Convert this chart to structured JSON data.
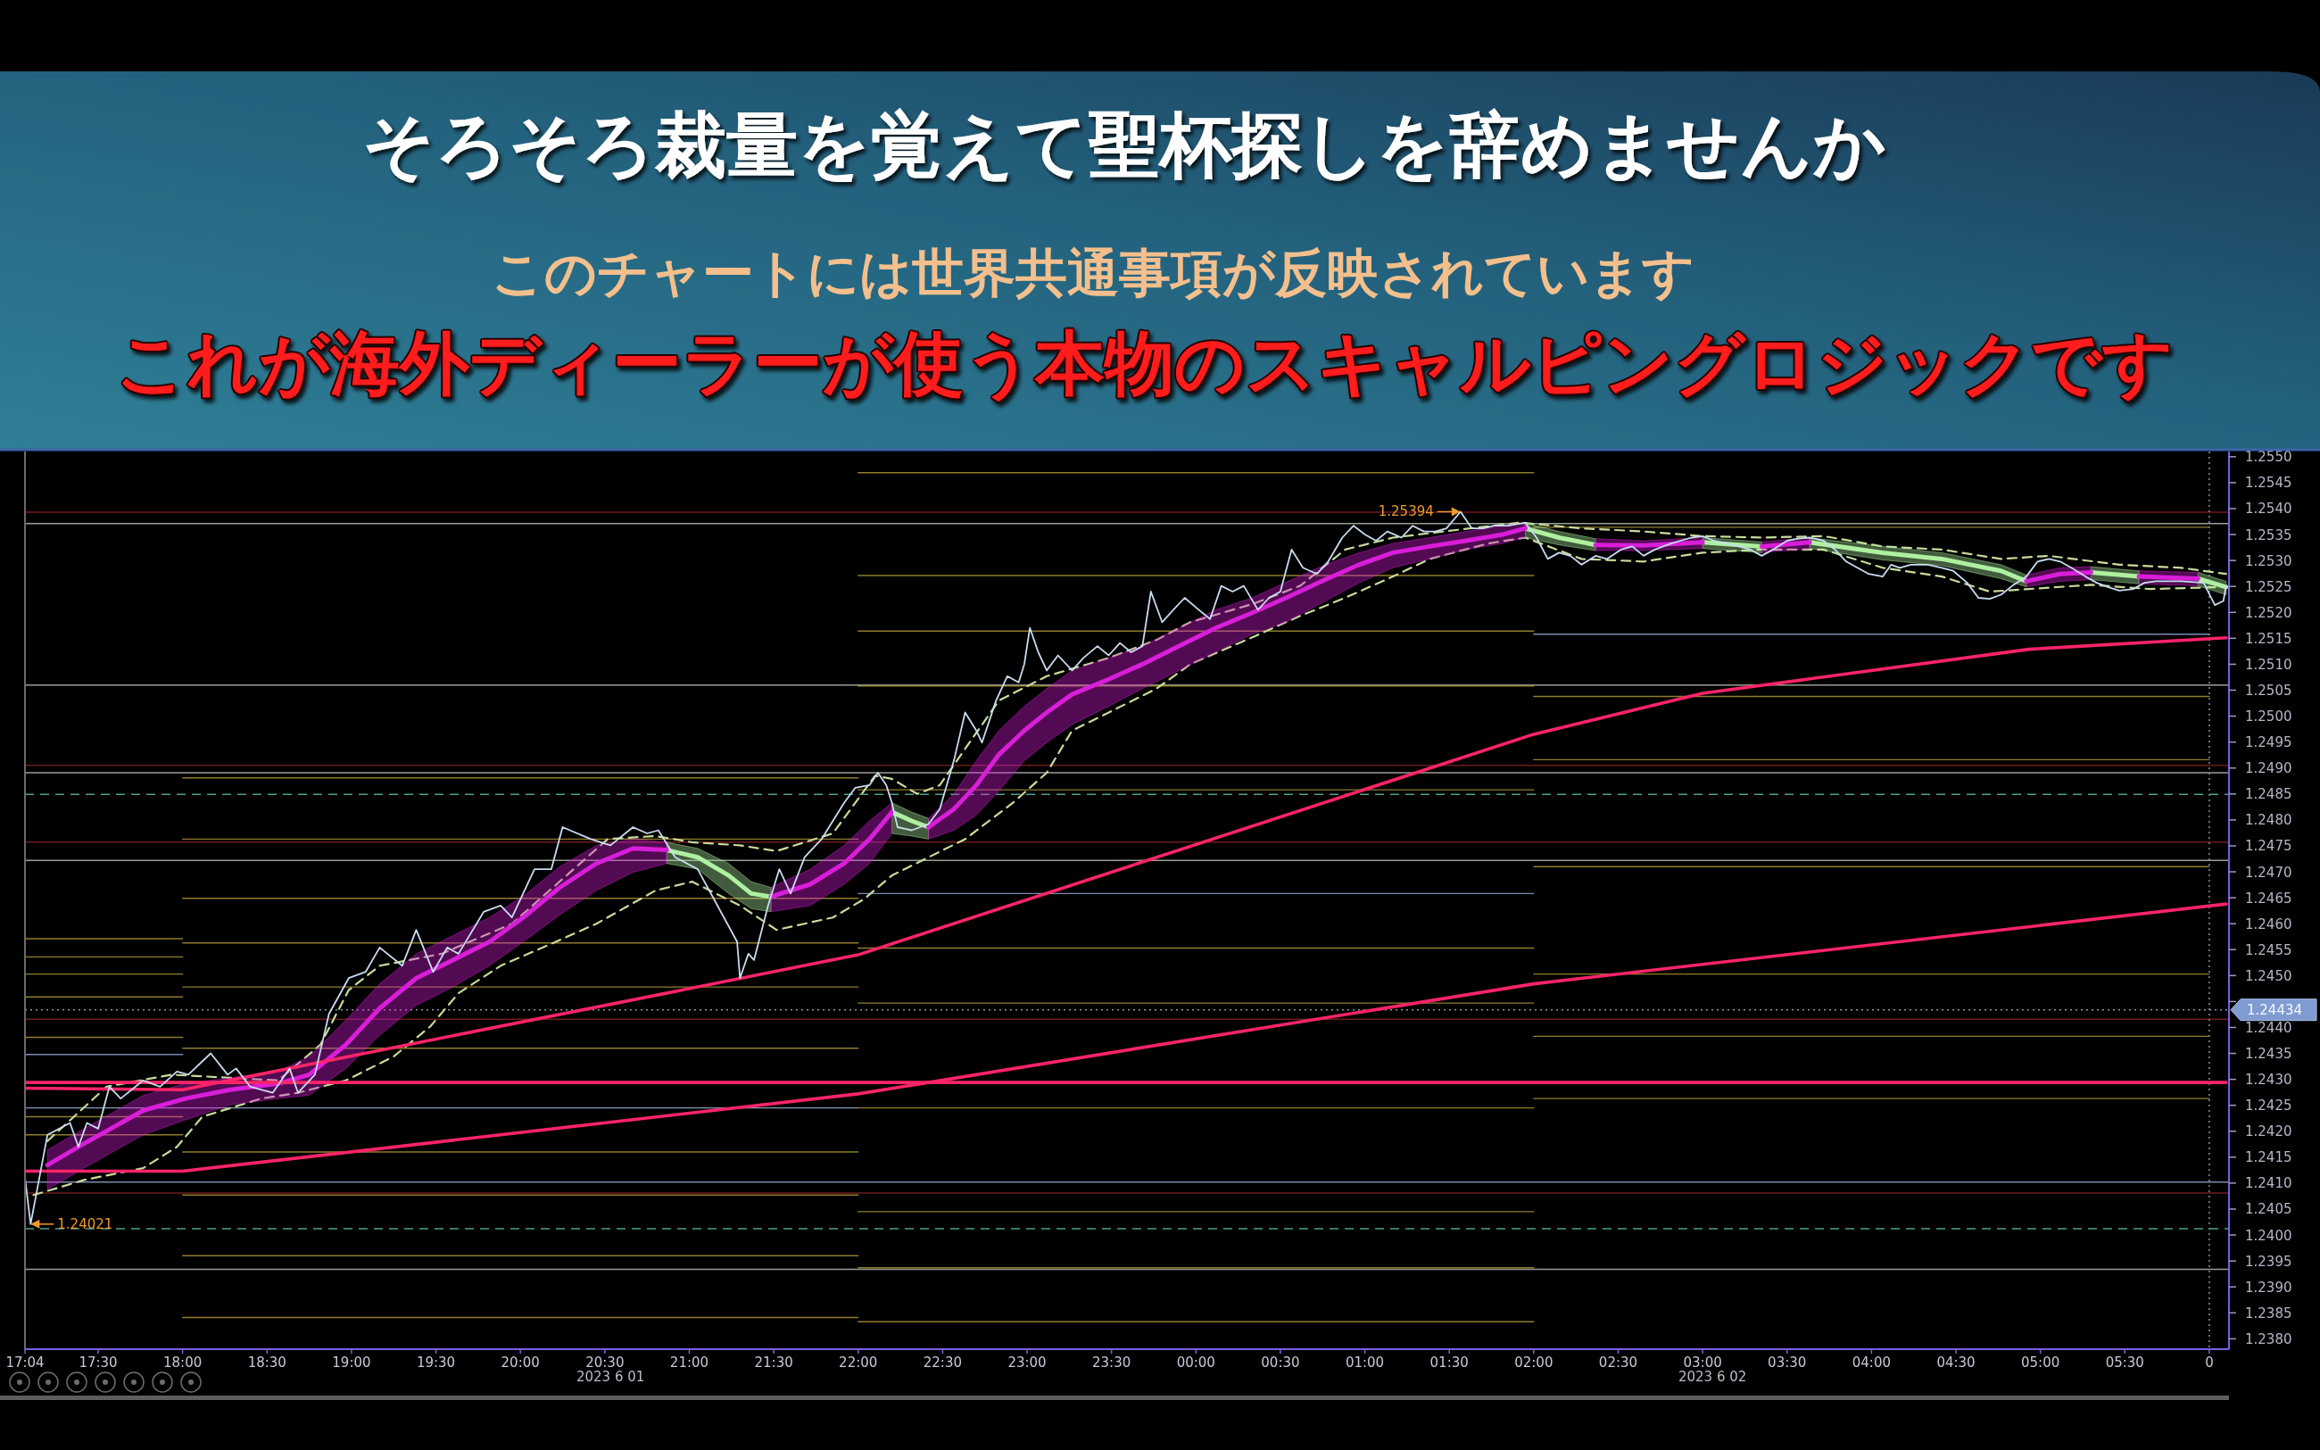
{
  "chart_data": {
    "type": "line",
    "title": "そろそろ裁量を覚えて聖杯探しを辞めませんか",
    "subtitle": "このチャートには世界共通事項が反映されています",
    "annotations": [
      "これが海外ディーラーが使う本物のスキャルピングロジックです",
      {
        "text": "1.25394",
        "x": "2023-06-02T01:34",
        "y": 1.25394
      },
      {
        "text": "1.24021",
        "x": "2023-06-01T17:06",
        "y": 1.24021
      },
      "2023 6 01",
      "2023 6 02"
    ],
    "xlim": [
      "2023-06-01T17:04",
      "2023-06-02T06:07"
    ],
    "ylim": [
      1.2378,
      1.2551
    ],
    "xticks": [
      {
        "value": "2023-06-01T17:04",
        "label": "17:04"
      },
      {
        "value": "2023-06-01T17:30",
        "label": "17:30"
      },
      {
        "value": "2023-06-01T18:00",
        "label": "18:00"
      },
      {
        "value": "2023-06-01T18:30",
        "label": "18:30"
      },
      {
        "value": "2023-06-01T19:00",
        "label": "19:00"
      },
      {
        "value": "2023-06-01T19:30",
        "label": "19:30"
      },
      {
        "value": "2023-06-01T20:00",
        "label": "20:00"
      },
      {
        "value": "2023-06-01T20:30",
        "label": "20:30"
      },
      {
        "value": "2023-06-01T21:00",
        "label": "21:00"
      },
      {
        "value": "2023-06-01T21:30",
        "label": "21:30"
      },
      {
        "value": "2023-06-01T22:00",
        "label": "22:00"
      },
      {
        "value": "2023-06-01T22:30",
        "label": "22:30"
      },
      {
        "value": "2023-06-01T23:00",
        "label": "23:00"
      },
      {
        "value": "2023-06-01T23:30",
        "label": "23:30"
      },
      {
        "value": "2023-06-02T00:00",
        "label": "00:00"
      },
      {
        "value": "2023-06-02T00:30",
        "label": "00:30"
      },
      {
        "value": "2023-06-02T01:00",
        "label": "01:00"
      },
      {
        "value": "2023-06-02T01:30",
        "label": "01:30"
      },
      {
        "value": "2023-06-02T02:00",
        "label": "02:00"
      },
      {
        "value": "2023-06-02T02:30",
        "label": "02:30"
      },
      {
        "value": "2023-06-02T03:00",
        "label": "03:00"
      },
      {
        "value": "2023-06-02T03:30",
        "label": "03:30"
      },
      {
        "value": "2023-06-02T04:00",
        "label": "04:00"
      },
      {
        "value": "2023-06-02T04:30",
        "label": "04:30"
      },
      {
        "value": "2023-06-02T05:00",
        "label": "05:00"
      },
      {
        "value": "2023-06-02T05:30",
        "label": "05:30"
      },
      {
        "value": "2023-06-02T06:00",
        "label": "0"
      }
    ],
    "yticks": [
      {
        "value": 1.238,
        "label": "1.2380"
      },
      1.2385,
      {
        "value": 1.239,
        "label": "1.2390"
      },
      1.2395,
      {
        "value": 1.24,
        "label": "1.2400"
      },
      1.2405,
      {
        "value": 1.241,
        "label": "1.2410"
      },
      1.2415,
      {
        "value": 1.242,
        "label": "1.2420"
      },
      1.2425,
      {
        "value": 1.243,
        "label": "1.2430"
      },
      1.2435,
      {
        "value": 1.244,
        "label": "1.2440"
      },
      {
        "value": 1.2445,
        "label": null
      },
      {
        "value": 1.245,
        "label": "1.2450"
      },
      1.2455,
      {
        "value": 1.246,
        "label": "1.2460"
      },
      1.2465,
      {
        "value": 1.247,
        "label": "1.2470"
      },
      1.2475,
      {
        "value": 1.248,
        "label": "1.2480"
      },
      1.2485,
      {
        "value": 1.249,
        "label": "1.2490"
      },
      1.2495,
      {
        "value": 1.25,
        "label": "1.2500"
      },
      1.2505,
      {
        "value": 1.251,
        "label": "1.2510"
      },
      1.2515,
      {
        "value": 1.252,
        "label": "1.2520"
      },
      1.2525,
      {
        "value": 1.253,
        "label": "1.2530"
      },
      1.2535,
      {
        "value": 1.254,
        "label": "1.2540"
      },
      1.2545,
      {
        "value": 1.255,
        "label": "1.2550"
      }
    ],
    "ref_lines": [
      {
        "axis": "y",
        "value": 1.25393,
        "color": "#6e1c1c"
      },
      {
        "axis": "y",
        "value": 1.25371,
        "color": "#9a9e94"
      },
      {
        "axis": "y",
        "value": 1.2506,
        "color": "#9a9e94"
      },
      {
        "axis": "y",
        "value": 1.24905,
        "color": "#6e1c1c"
      },
      {
        "axis": "y",
        "value": 1.24891,
        "color": "#9a9e94"
      },
      {
        "axis": "y",
        "value": 1.24849,
        "color": "#4e9e94",
        "line_style": "dashed"
      },
      {
        "axis": "y",
        "value": 1.24757,
        "color": "#6e1c1c"
      },
      {
        "axis": "y",
        "value": 1.24722,
        "color": "#9a9e94"
      },
      {
        "axis": "y",
        "value": 1.24434,
        "color": "#8a94a8",
        "line_style": "dotted",
        "label": "1.24434"
      },
      {
        "axis": "y",
        "value": 1.24416,
        "color": "#6e1c1c"
      },
      {
        "axis": "y",
        "value": 1.24102,
        "color": "#7c8ab0"
      },
      {
        "axis": "y",
        "value": 1.24081,
        "color": "#6e1c1c"
      },
      {
        "axis": "y",
        "value": 1.24012,
        "color": "#4e9e94",
        "line_style": "dashed"
      },
      {
        "axis": "y",
        "value": 1.23934,
        "color": "#9a9e94"
      },
      {
        "axis": "x",
        "value": "2023-06-02T06:00",
        "color": "#8a94a8",
        "line_style": "dotted"
      }
    ],
    "series": [
      {
        "color": "#c8dcf0",
        "x": [
          "2023-06-01T17:04",
          "2023-06-01T17:06",
          "2023-06-01T17:12",
          "2023-06-01T17:20",
          "2023-06-01T17:23",
          "2023-06-01T17:26",
          "2023-06-01T17:30",
          "2023-06-01T17:34",
          "2023-06-01T17:38",
          "2023-06-01T17:46",
          "2023-06-01T17:52",
          "2023-06-01T17:58",
          "2023-06-01T18:02",
          "2023-06-01T18:10",
          "2023-06-01T18:16",
          "2023-06-01T18:19",
          "2023-06-01T18:24",
          "2023-06-01T18:32",
          "2023-06-01T18:38",
          "2023-06-01T18:41",
          "2023-06-01T18:47",
          "2023-06-01T18:52",
          "2023-06-01T18:59",
          "2023-06-01T19:05",
          "2023-06-01T19:10",
          "2023-06-01T19:18",
          "2023-06-01T19:23",
          "2023-06-01T19:29",
          "2023-06-01T19:34",
          "2023-06-01T19:38",
          "2023-06-01T19:47",
          "2023-06-01T19:53",
          "2023-06-01T19:57",
          "2023-06-01T20:05",
          "2023-06-01T20:11",
          "2023-06-01T20:15",
          "2023-06-01T20:25",
          "2023-06-01T20:32",
          "2023-06-01T20:40",
          "2023-06-01T20:45",
          "2023-06-01T20:49",
          "2023-06-01T20:55",
          "2023-06-01T21:03",
          "2023-06-01T21:10",
          "2023-06-01T21:17",
          "2023-06-01T21:18",
          "2023-06-01T21:21",
          "2023-06-01T21:23",
          "2023-06-01T21:28",
          "2023-06-01T21:32",
          "2023-06-01T21:36",
          "2023-06-01T21:41",
          "2023-06-01T21:47",
          "2023-06-01T21:51",
          "2023-06-01T21:55",
          "2023-06-01T21:59",
          "2023-06-01T22:04",
          "2023-06-01T22:07",
          "2023-06-01T22:10",
          "2023-06-01T22:12",
          "2023-06-01T22:14",
          "2023-06-01T22:19",
          "2023-06-01T22:25",
          "2023-06-01T22:29",
          "2023-06-01T22:34",
          "2023-06-01T22:38",
          "2023-06-01T22:42",
          "2023-06-01T22:44",
          "2023-06-01T22:49",
          "2023-06-01T22:53",
          "2023-06-01T22:57",
          "2023-06-01T22:59",
          "2023-06-01T23:01",
          "2023-06-01T23:04",
          "2023-06-01T23:07",
          "2023-06-01T23:11",
          "2023-06-01T23:16",
          "2023-06-01T23:20",
          "2023-06-01T23:25",
          "2023-06-01T23:29",
          "2023-06-01T23:33",
          "2023-06-01T23:37",
          "2023-06-01T23:41",
          "2023-06-01T23:44",
          "2023-06-01T23:48",
          "2023-06-01T23:52",
          "2023-06-01T23:56",
          "2023-06-02T00:01",
          "2023-06-02T00:05",
          "2023-06-02T00:09",
          "2023-06-02T00:13",
          "2023-06-02T00:17",
          "2023-06-02T00:22",
          "2023-06-02T00:26",
          "2023-06-02T00:30",
          "2023-06-02T00:34",
          "2023-06-02T00:38",
          "2023-06-02T00:43",
          "2023-06-02T00:47",
          "2023-06-02T00:52",
          "2023-06-02T00:56",
          "2023-06-02T01:00",
          "2023-06-02T01:04",
          "2023-06-02T01:08",
          "2023-06-02T01:13",
          "2023-06-02T01:17",
          "2023-06-02T01:21",
          "2023-06-02T01:25",
          "2023-06-02T01:29",
          "2023-06-02T01:34",
          "2023-06-02T01:38",
          "2023-06-02T01:42",
          "2023-06-02T01:46",
          "2023-06-02T01:51",
          "2023-06-02T01:57",
          "2023-06-02T02:01",
          "2023-06-02T02:05",
          "2023-06-02T02:09",
          "2023-06-02T02:13",
          "2023-06-02T02:17",
          "2023-06-02T02:22",
          "2023-06-02T02:26",
          "2023-06-02T02:31",
          "2023-06-02T02:35",
          "2023-06-02T02:39",
          "2023-06-02T02:43",
          "2023-06-02T02:49",
          "2023-06-02T02:56",
          "2023-06-02T03:00",
          "2023-06-02T03:04",
          "2023-06-02T03:08",
          "2023-06-02T03:13",
          "2023-06-02T03:17",
          "2023-06-02T03:21",
          "2023-06-02T03:25",
          "2023-06-02T03:30",
          "2023-06-02T03:34",
          "2023-06-02T03:38",
          "2023-06-02T03:43",
          "2023-06-02T03:47",
          "2023-06-02T03:51",
          "2023-06-02T03:55",
          "2023-06-02T03:59",
          "2023-06-02T04:04",
          "2023-06-02T04:07",
          "2023-06-02T04:10",
          "2023-06-02T04:14",
          "2023-06-02T04:20",
          "2023-06-02T04:25",
          "2023-06-02T04:29",
          "2023-06-02T04:34",
          "2023-06-02T04:38",
          "2023-06-02T04:42",
          "2023-06-02T04:46",
          "2023-06-02T04:50",
          "2023-06-02T04:55",
          "2023-06-02T04:59",
          "2023-06-02T05:03",
          "2023-06-02T05:07",
          "2023-06-02T05:11",
          "2023-06-02T05:16",
          "2023-06-02T05:20",
          "2023-06-02T05:24",
          "2023-06-02T05:28",
          "2023-06-02T05:33",
          "2023-06-02T05:37",
          "2023-06-02T05:41",
          "2023-06-02T05:50",
          "2023-06-02T05:58",
          "2023-06-02T06:02",
          "2023-06-02T06:05",
          "2023-06-02T06:06"
        ],
        "values": [
          1.2411,
          1.24021,
          1.24193,
          1.24216,
          1.2417,
          1.24216,
          1.24205,
          1.24286,
          1.24263,
          1.24298,
          1.24286,
          1.24315,
          1.24309,
          1.2435,
          1.24309,
          1.24321,
          1.24286,
          1.24274,
          1.24321,
          1.24274,
          1.24309,
          1.24426,
          1.24495,
          1.24507,
          1.24554,
          1.24519,
          1.24588,
          1.24507,
          1.24554,
          1.24542,
          1.24623,
          1.24635,
          1.24612,
          1.24705,
          1.24705,
          1.24786,
          1.24763,
          1.24751,
          1.24786,
          1.24774,
          1.2478,
          1.24728,
          1.24705,
          1.24635,
          1.24565,
          1.24495,
          1.24542,
          1.2453,
          1.24635,
          1.24705,
          1.24658,
          1.24728,
          1.24763,
          1.24798,
          1.24833,
          1.24862,
          1.24867,
          1.24891,
          1.24867,
          1.24833,
          1.24786,
          1.2478,
          1.24792,
          1.24821,
          1.24914,
          1.25007,
          1.24972,
          1.24949,
          1.2503,
          1.25077,
          1.25065,
          1.251,
          1.2517,
          1.25123,
          1.25088,
          1.25117,
          1.25088,
          1.25112,
          1.25135,
          1.25117,
          1.25141,
          1.25123,
          1.25135,
          1.2524,
          1.25181,
          1.25205,
          1.25228,
          1.25205,
          1.25187,
          1.25251,
          1.2524,
          1.25251,
          1.25205,
          1.25228,
          1.2524,
          1.25321,
          1.25286,
          1.25274,
          1.25298,
          1.25344,
          1.25367,
          1.2535,
          1.25338,
          1.25356,
          1.25344,
          1.25367,
          1.25356,
          1.25356,
          1.25362,
          1.25394,
          1.25362,
          1.25362,
          1.25367,
          1.25367,
          1.25373,
          1.25344,
          1.25303,
          1.25315,
          1.25309,
          1.25292,
          1.25309,
          1.25303,
          1.25321,
          1.25327,
          1.25309,
          1.25321,
          1.25333,
          1.25344,
          1.25347,
          1.25338,
          1.25333,
          1.25327,
          1.25321,
          1.25309,
          1.25321,
          1.25338,
          1.25342,
          1.25344,
          1.25338,
          1.25321,
          1.25298,
          1.25286,
          1.25274,
          1.25269,
          1.25292,
          1.25286,
          1.25292,
          1.25292,
          1.25286,
          1.2528,
          1.25257,
          1.25228,
          1.25226,
          1.25234,
          1.25251,
          1.25269,
          1.25298,
          1.25303,
          1.25298,
          1.25286,
          1.25269,
          1.25257,
          1.25249,
          1.25242,
          1.25245,
          1.25257,
          1.2526,
          1.2526,
          1.25257,
          1.25214,
          1.25222,
          1.25251
        ]
      },
      {
        "color": "#ff2468",
        "x": [
          "2023-06-01T17:04",
          "2023-06-01T18:00",
          "2023-06-01T22:00",
          "2023-06-02T02:00",
          "2023-06-02T06:06"
        ],
        "values": [
          1.24123,
          1.24123,
          1.24272,
          1.24484,
          1.24638
        ]
      },
      {
        "color": "#ff2468",
        "x": [
          "2023-06-01T17:04",
          "2023-06-01T18:00",
          "2023-06-01T22:00",
          "2023-06-02T02:00",
          "2023-06-02T03:00",
          "2023-06-02T04:56",
          "2023-06-02T06:06"
        ],
        "values": [
          1.24283,
          1.2428,
          1.2454,
          1.24965,
          1.25044,
          1.25129,
          1.25151
        ]
      },
      {
        "color": "#ff2468",
        "x": [
          "2023-06-01T17:04",
          "2023-06-02T06:06"
        ],
        "values": [
          1.24294,
          1.24294
        ]
      },
      {
        "color": "#d81ed8",
        "x": [
          "2023-06-01T17:12",
          "2023-06-01T17:25",
          "2023-06-01T17:46",
          "2023-06-01T18:01",
          "2023-06-01T18:17",
          "2023-06-01T18:34",
          "2023-06-01T18:45",
          "2023-06-01T18:58",
          "2023-06-01T19:10",
          "2023-06-01T19:23",
          "2023-06-01T19:36",
          "2023-06-01T19:49",
          "2023-06-01T20:01",
          "2023-06-01T20:14",
          "2023-06-01T20:27",
          "2023-06-01T20:40",
          "2023-06-01T20:52"
        ],
        "values": [
          1.24135,
          1.24176,
          1.2424,
          1.24263,
          1.2428,
          1.24292,
          1.24309,
          1.24367,
          1.24437,
          1.24495,
          1.2453,
          1.24565,
          1.24612,
          1.2467,
          1.24716,
          1.24745,
          1.24742
        ],
        "upper": [
          1.24164,
          1.24205,
          1.24269,
          1.24292,
          1.24303,
          1.24315,
          1.24344,
          1.24414,
          1.24484,
          1.24542,
          1.24577,
          1.24612,
          1.24653,
          1.2471,
          1.24751,
          1.24763,
          1.24757
        ],
        "lower": [
          1.24088,
          1.24129,
          1.24193,
          1.24222,
          1.24251,
          1.24263,
          1.24269,
          1.24321,
          1.24385,
          1.24443,
          1.24478,
          1.24519,
          1.24565,
          1.24617,
          1.24664,
          1.24699,
          1.24716
        ]
      },
      {
        "color": "#d81ed8",
        "x": [
          "2023-06-01T21:29",
          "2023-06-01T21:43",
          "2023-06-01T21:55",
          "2023-06-01T22:04",
          "2023-06-01T22:12"
        ],
        "values": [
          1.24652,
          1.24676,
          1.24716,
          1.24763,
          1.24815
        ],
        "upper": [
          1.2467,
          1.24705,
          1.24751,
          1.24798,
          1.24833
        ],
        "lower": [
          1.24623,
          1.24635,
          1.24676,
          1.24716,
          1.24774
        ]
      },
      {
        "color": "#d81ed8",
        "x": [
          "2023-06-01T22:25",
          "2023-06-01T22:34",
          "2023-06-01T22:42",
          "2023-06-01T22:50",
          "2023-06-01T22:59",
          "2023-06-01T23:07",
          "2023-06-01T23:16",
          "2023-06-01T23:29",
          "2023-06-01T23:41",
          "2023-06-01T23:54",
          "2023-06-02T00:07",
          "2023-06-02T00:20",
          "2023-06-02T00:32",
          "2023-06-02T00:46",
          "2023-06-02T00:58",
          "2023-06-02T01:10",
          "2023-06-02T01:23",
          "2023-06-02T01:36",
          "2023-06-02T01:49",
          "2023-06-02T01:57"
        ],
        "values": [
          1.24786,
          1.24821,
          1.24867,
          1.24926,
          1.24972,
          1.25007,
          1.25042,
          1.25071,
          1.251,
          1.25135,
          1.2517,
          1.25199,
          1.25228,
          1.25263,
          1.25292,
          1.25315,
          1.25327,
          1.25338,
          1.2535,
          1.25362
        ],
        "upper": [
          1.24803,
          1.2485,
          1.24914,
          1.24972,
          1.25019,
          1.25053,
          1.25088,
          1.25112,
          1.25135,
          1.2517,
          1.25205,
          1.25228,
          1.25258,
          1.25292,
          1.25315,
          1.25333,
          1.25344,
          1.25356,
          1.25367,
          1.25373
        ],
        "lower": [
          1.24763,
          1.2478,
          1.24809,
          1.24856,
          1.24914,
          1.24949,
          1.24984,
          1.25019,
          1.25053,
          1.25088,
          1.25123,
          1.25158,
          1.25181,
          1.25222,
          1.25257,
          1.25286,
          1.25303,
          1.25321,
          1.25333,
          1.25344
        ]
      },
      {
        "color": "#d81ed8",
        "x": [
          "2023-06-02T02:22",
          "2023-06-02T02:39",
          "2023-06-02T03:00"
        ],
        "values": [
          1.2533,
          1.25329,
          1.25335
        ],
        "upper": [
          1.25342,
          1.25338,
          1.25344
        ],
        "lower": [
          1.25319,
          1.25319,
          1.25323
        ]
      },
      {
        "color": "#d81ed8",
        "x": [
          "2023-06-02T03:21",
          "2023-06-02T03:38"
        ],
        "values": [
          1.25327,
          1.25335
        ],
        "upper": [
          1.25336,
          1.25344
        ],
        "lower": [
          1.25315,
          1.25323
        ]
      },
      {
        "color": "#d81ed8",
        "x": [
          "2023-06-02T04:55",
          "2023-06-02T05:07",
          "2023-06-02T05:18"
        ],
        "values": [
          1.2526,
          1.25274,
          1.25277
        ],
        "upper": [
          1.25272,
          1.25286,
          1.25288
        ],
        "lower": [
          1.25249,
          1.2526,
          1.25263
        ]
      },
      {
        "color": "#d81ed8",
        "x": [
          "2023-06-02T05:35",
          "2023-06-02T05:56"
        ],
        "values": [
          1.25269,
          1.25265
        ],
        "upper": [
          1.2528,
          1.25277
        ],
        "lower": [
          1.25255,
          1.25251
        ]
      },
      {
        "color": "#aef0a0",
        "x": [
          "2023-06-01T20:52",
          "2023-06-01T21:03",
          "2023-06-01T21:14",
          "2023-06-01T21:22",
          "2023-06-01T21:29"
        ],
        "values": [
          1.24742,
          1.24728,
          1.24693,
          1.24658,
          1.24652
        ],
        "upper": [
          1.24757,
          1.24745,
          1.24716,
          1.24681,
          1.2467
        ],
        "lower": [
          1.24716,
          1.24705,
          1.24658,
          1.24629,
          1.24623
        ]
      },
      {
        "color": "#aef0a0",
        "x": [
          "2023-06-01T22:12",
          "2023-06-01T22:19",
          "2023-06-01T22:25"
        ],
        "values": [
          1.24815,
          1.24798,
          1.24786
        ],
        "upper": [
          1.24833,
          1.24815,
          1.24803
        ],
        "lower": [
          1.24774,
          1.24769,
          1.24763
        ]
      },
      {
        "color": "#aef0a0",
        "x": [
          "2023-06-02T01:57",
          "2023-06-02T02:09",
          "2023-06-02T02:22"
        ],
        "values": [
          1.25362,
          1.25344,
          1.2533
        ],
        "upper": [
          1.25373,
          1.25356,
          1.25342
        ],
        "lower": [
          1.25344,
          1.2533,
          1.25319
        ]
      },
      {
        "color": "#aef0a0",
        "x": [
          "2023-06-02T03:00",
          "2023-06-02T03:21"
        ],
        "values": [
          1.25335,
          1.25327
        ],
        "upper": [
          1.25344,
          1.25336
        ],
        "lower": [
          1.25323,
          1.25315
        ]
      },
      {
        "color": "#aef0a0",
        "x": [
          "2023-06-02T03:38",
          "2023-06-02T04:04",
          "2023-06-02T04:25",
          "2023-06-02T04:46",
          "2023-06-02T04:55"
        ],
        "values": [
          1.25335,
          1.25315,
          1.25303,
          1.2528,
          1.2526
        ],
        "upper": [
          1.25344,
          1.25327,
          1.25315,
          1.25292,
          1.25272
        ],
        "lower": [
          1.25323,
          1.25301,
          1.2529,
          1.25265,
          1.25249
        ]
      },
      {
        "color": "#aef0a0",
        "x": [
          "2023-06-02T05:18",
          "2023-06-02T05:35"
        ],
        "values": [
          1.25277,
          1.25269
        ],
        "upper": [
          1.25288,
          1.2528
        ],
        "lower": [
          1.25263,
          1.25255
        ]
      },
      {
        "color": "#aef0a0",
        "x": [
          "2023-06-02T05:56",
          "2023-06-02T06:06"
        ],
        "values": [
          1.25265,
          1.25249
        ],
        "upper": [
          1.25277,
          1.2526
        ],
        "lower": [
          1.25251,
          1.25234
        ]
      },
      {
        "color": "#c8dc9a",
        "line_style": "dashed",
        "x": [
          "2023-06-01T17:12",
          "2023-06-01T17:33",
          "2023-06-01T17:56",
          "2023-06-01T18:17",
          "2023-06-01T18:34",
          "2023-06-01T18:49",
          "2023-06-01T18:59",
          "2023-06-01T19:10",
          "2023-06-01T19:32",
          "2023-06-01T19:57",
          "2023-06-01T20:31",
          "2023-06-01T20:48",
          "2023-06-01T21:01",
          "2023-06-01T21:18",
          "2023-06-01T21:31",
          "2023-06-01T21:51",
          "2023-06-01T22:06",
          "2023-06-01T22:12",
          "2023-06-01T22:21",
          "2023-06-01T22:29",
          "2023-06-01T22:38",
          "2023-06-01T22:50",
          "2023-06-01T23:07",
          "2023-06-01T23:29",
          "2023-06-01T23:46",
          "2023-06-01T23:58",
          "2023-06-02T00:20",
          "2023-06-02T00:37",
          "2023-06-02T00:53",
          "2023-06-02T01:10",
          "2023-06-02T01:28",
          "2023-06-02T01:55",
          "2023-06-02T02:17",
          "2023-06-02T02:39",
          "2023-06-02T03:00",
          "2023-06-02T03:21",
          "2023-06-02T03:43",
          "2023-06-02T04:04",
          "2023-06-02T04:25",
          "2023-06-02T04:46",
          "2023-06-02T05:03",
          "2023-06-02T05:28",
          "2023-06-02T05:50",
          "2023-06-02T06:06"
        ],
        "values": [
          1.24181,
          1.24286,
          1.24309,
          1.24303,
          1.24298,
          1.24367,
          1.24472,
          1.24519,
          1.24542,
          1.246,
          1.24763,
          1.24769,
          1.24757,
          1.24751,
          1.2474,
          1.24774,
          1.24885,
          1.24879,
          1.2485,
          1.24867,
          1.24937,
          1.2503,
          1.25077,
          1.25112,
          1.25147,
          1.25181,
          1.25216,
          1.25251,
          1.25321,
          1.25344,
          1.25356,
          1.25373,
          1.25362,
          1.25356,
          1.25347,
          1.25344,
          1.25347,
          1.25327,
          1.25321,
          1.25303,
          1.25309,
          1.25292,
          1.25286,
          1.25274
        ]
      },
      {
        "color": "#c8dc9a",
        "line_style": "dashed",
        "x": [
          "2023-06-01T17:07",
          "2023-06-01T17:25",
          "2023-06-01T17:46",
          "2023-06-01T17:58",
          "2023-06-01T18:07",
          "2023-06-01T18:28",
          "2023-06-01T18:41",
          "2023-06-01T18:58",
          "2023-06-01T19:15",
          "2023-06-01T19:28",
          "2023-06-01T19:38",
          "2023-06-01T19:53",
          "2023-06-01T20:10",
          "2023-06-01T20:27",
          "2023-06-01T20:48",
          "2023-06-01T21:01",
          "2023-06-01T21:18",
          "2023-06-01T21:31",
          "2023-06-01T21:51",
          "2023-06-01T22:02",
          "2023-06-01T22:12",
          "2023-06-01T22:25",
          "2023-06-01T22:38",
          "2023-06-01T22:55",
          "2023-06-01T23:07",
          "2023-06-01T23:16",
          "2023-06-01T23:29",
          "2023-06-01T23:46",
          "2023-06-01T23:58",
          "2023-06-02T00:20",
          "2023-06-02T00:37",
          "2023-06-02T00:53",
          "2023-06-02T01:10",
          "2023-06-02T01:23",
          "2023-06-02T01:44",
          "2023-06-02T01:57",
          "2023-06-02T02:17",
          "2023-06-02T02:39",
          "2023-06-02T03:00",
          "2023-06-02T03:21",
          "2023-06-02T03:43",
          "2023-06-02T04:04",
          "2023-06-02T04:25",
          "2023-06-02T04:42",
          "2023-06-02T04:56",
          "2023-06-02T05:18",
          "2023-06-02T05:39",
          "2023-06-02T06:06"
        ],
        "values": [
          1.24077,
          1.24106,
          1.24129,
          1.2417,
          1.24228,
          1.24263,
          1.24274,
          1.24298,
          1.24344,
          1.24402,
          1.24466,
          1.24519,
          1.24559,
          1.246,
          1.24664,
          1.24681,
          1.24635,
          1.24588,
          1.24612,
          1.24647,
          1.24693,
          1.24728,
          1.24763,
          1.24833,
          1.24891,
          1.24972,
          1.25007,
          1.25053,
          1.251,
          1.25152,
          1.25193,
          1.25228,
          1.25269,
          1.25303,
          1.25333,
          1.25344,
          1.25303,
          1.25298,
          1.25315,
          1.25321,
          1.25321,
          1.25286,
          1.25269,
          1.2524,
          1.25245,
          1.25253,
          1.25245,
          1.25249
        ]
      },
      {
        "color": "#8f7c2c",
        "x": [
          "2023-06-01T17:04",
          "2023-06-01T18:00"
        ],
        "values": [
          1.24571,
          1.24571
        ]
      },
      {
        "color": "#8f7c2c",
        "x": [
          "2023-06-01T17:04",
          "2023-06-01T18:00"
        ],
        "values": [
          1.24536,
          1.24536
        ]
      },
      {
        "color": "#8f7c2c",
        "x": [
          "2023-06-01T17:04",
          "2023-06-01T18:00"
        ],
        "values": [
          1.24503,
          1.24503
        ]
      },
      {
        "color": "#8f7c2c",
        "x": [
          "2023-06-01T17:04",
          "2023-06-01T18:00"
        ],
        "values": [
          1.24459,
          1.24459
        ]
      },
      {
        "color": "#8f7c2c",
        "x": [
          "2023-06-01T17:04",
          "2023-06-01T18:00"
        ],
        "values": [
          1.24381,
          1.24381
        ]
      },
      {
        "color": "#8f7c2c",
        "x": [
          "2023-06-01T17:04",
          "2023-06-01T18:00"
        ],
        "values": [
          1.24228,
          1.24228
        ]
      },
      {
        "color": "#8f7c2c",
        "x": [
          "2023-06-01T17:04",
          "2023-06-01T18:00"
        ],
        "values": [
          1.24193,
          1.24193
        ]
      },
      {
        "color": "#7c8ab0",
        "x": [
          "2023-06-01T17:04",
          "2023-06-01T18:00"
        ],
        "values": [
          1.24348,
          1.24348
        ]
      },
      {
        "color": "#8a98b8",
        "x": [
          "2023-06-01T17:04",
          "2023-06-01T22:00"
        ],
        "values": [
          1.24245,
          1.24245
        ]
      },
      {
        "color": "#8f7c2c",
        "x": [
          "2023-06-01T18:00",
          "2023-06-01T22:00"
        ],
        "values": [
          1.24881,
          1.24881
        ]
      },
      {
        "color": "#8f7c2c",
        "x": [
          "2023-06-01T18:00",
          "2023-06-01T22:00"
        ],
        "values": [
          1.24763,
          1.24763
        ]
      },
      {
        "color": "#8f7c2c",
        "x": [
          "2023-06-01T18:00",
          "2023-06-01T22:00"
        ],
        "values": [
          1.24649,
          1.24649
        ]
      },
      {
        "color": "#8f7c2c",
        "x": [
          "2023-06-01T18:00",
          "2023-06-01T22:00"
        ],
        "values": [
          1.24563,
          1.24563
        ]
      },
      {
        "color": "#8f7c2c",
        "x": [
          "2023-06-01T18:00",
          "2023-06-01T22:00"
        ],
        "values": [
          1.24478,
          1.24478
        ]
      },
      {
        "color": "#8f7c2c",
        "x": [
          "2023-06-01T18:00",
          "2023-06-01T22:00"
        ],
        "values": [
          1.2436,
          1.2436
        ]
      },
      {
        "color": "#8f7c2c",
        "x": [
          "2023-06-01T18:00",
          "2023-06-01T22:00"
        ],
        "values": [
          1.2416,
          1.2416
        ]
      },
      {
        "color": "#8f7c2c",
        "x": [
          "2023-06-01T18:00",
          "2023-06-01T22:00"
        ],
        "values": [
          1.24077,
          1.24077
        ]
      },
      {
        "color": "#8f7c2c",
        "x": [
          "2023-06-01T18:00",
          "2023-06-01T22:00"
        ],
        "values": [
          1.2396,
          1.2396
        ]
      },
      {
        "color": "#8f7c2c",
        "x": [
          "2023-06-01T18:00",
          "2023-06-01T22:00"
        ],
        "values": [
          1.23841,
          1.23841
        ]
      },
      {
        "color": "#8f7c2c",
        "x": [
          "2023-06-01T22:00",
          "2023-06-02T02:00"
        ],
        "values": [
          1.25469,
          1.25469
        ]
      },
      {
        "color": "#8f7c2c",
        "x": [
          "2023-06-01T22:00",
          "2023-06-02T02:00"
        ],
        "values": [
          1.25271,
          1.25271
        ]
      },
      {
        "color": "#8f7c2c",
        "x": [
          "2023-06-01T22:00",
          "2023-06-02T02:00"
        ],
        "values": [
          1.25164,
          1.25164
        ]
      },
      {
        "color": "#8f7c2c",
        "x": [
          "2023-06-01T22:00",
          "2023-06-02T02:00"
        ],
        "values": [
          1.25058,
          1.25058
        ]
      },
      {
        "color": "#8f7c2c",
        "x": [
          "2023-06-01T22:00",
          "2023-06-02T02:00"
        ],
        "values": [
          1.24858,
          1.24858
        ]
      },
      {
        "color": "#8f7c2c",
        "x": [
          "2023-06-01T22:00",
          "2023-06-02T02:00"
        ],
        "values": [
          1.24553,
          1.24553
        ]
      },
      {
        "color": "#8f7c2c",
        "x": [
          "2023-06-01T22:00",
          "2023-06-02T02:00"
        ],
        "values": [
          1.24447,
          1.24447
        ]
      },
      {
        "color": "#8f7c2c",
        "x": [
          "2023-06-01T22:00",
          "2023-06-02T02:00"
        ],
        "values": [
          1.24245,
          1.24245
        ]
      },
      {
        "color": "#8f7c2c",
        "x": [
          "2023-06-01T22:00",
          "2023-06-02T02:00"
        ],
        "values": [
          1.24045,
          1.24045
        ]
      },
      {
        "color": "#8f7c2c",
        "x": [
          "2023-06-01T22:00",
          "2023-06-02T02:00"
        ],
        "values": [
          1.23937,
          1.23937
        ]
      },
      {
        "color": "#8f7c2c",
        "x": [
          "2023-06-01T22:00",
          "2023-06-02T02:00"
        ],
        "values": [
          1.23833,
          1.23833
        ]
      },
      {
        "color": "#7c8ab0",
        "x": [
          "2023-06-01T22:00",
          "2023-06-02T02:00"
        ],
        "values": [
          1.24658,
          1.24658
        ]
      },
      {
        "color": "#8f7c2c",
        "x": [
          "2023-06-02T02:00",
          "2023-06-02T06:00"
        ],
        "values": [
          1.25364,
          1.25364
        ]
      },
      {
        "color": "#8f7c2c",
        "x": [
          "2023-06-02T02:00",
          "2023-06-02T06:00"
        ],
        "values": [
          1.25038,
          1.25038
        ]
      },
      {
        "color": "#8f7c2c",
        "x": [
          "2023-06-02T02:00",
          "2023-06-02T06:00"
        ],
        "values": [
          1.24916,
          1.24916
        ]
      },
      {
        "color": "#8f7c2c",
        "x": [
          "2023-06-02T02:00",
          "2023-06-02T06:00"
        ],
        "values": [
          1.2471,
          1.2471
        ]
      },
      {
        "color": "#8f7c2c",
        "x": [
          "2023-06-02T02:00",
          "2023-06-02T06:00"
        ],
        "values": [
          1.24503,
          1.24503
        ]
      },
      {
        "color": "#8f7c2c",
        "x": [
          "2023-06-02T02:00",
          "2023-06-02T06:00"
        ],
        "values": [
          1.24383,
          1.24383
        ]
      },
      {
        "color": "#8f7c2c",
        "x": [
          "2023-06-02T02:00",
          "2023-06-02T06:00"
        ],
        "values": [
          1.24263,
          1.24263
        ]
      },
      {
        "color": "#7c8ab0",
        "x": [
          "2023-06-02T02:00",
          "2023-06-02T06:00"
        ],
        "values": [
          1.25158,
          1.25158
        ]
      }
    ]
  }
}
